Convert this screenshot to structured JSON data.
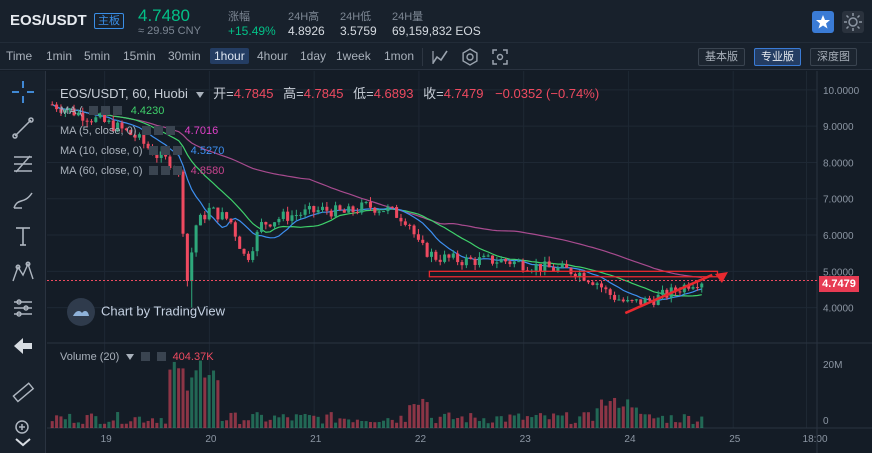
{
  "header": {
    "pair": "EOS/USDT",
    "badge": "主板",
    "price": "4.7480",
    "cny": "≈ 29.95 CNY",
    "stats": [
      {
        "label": "涨幅",
        "value": "+15.49%",
        "tone": "up"
      },
      {
        "label": "24H高",
        "value": "4.8926",
        "tone": "neutral"
      },
      {
        "label": "24H低",
        "value": "3.5759",
        "tone": "neutral"
      },
      {
        "label": "24H量",
        "value": "69,159,832 EOS",
        "tone": "neutral"
      }
    ]
  },
  "toolbar": {
    "intervals": [
      "Time",
      "1min",
      "5min",
      "15min",
      "30min",
      "1hour",
      "4hour",
      "1day",
      "1week",
      "1mon"
    ],
    "active_interval": "1hour",
    "views": [
      "基本版",
      "专业版",
      "深度图"
    ],
    "active_view": "专业版"
  },
  "draw_tools": [
    "crosshair-icon",
    "trendline-icon",
    "fib-icon",
    "brush-icon",
    "text-icon",
    "pattern-icon",
    "measure-icon",
    "back-arrow-icon",
    "ruler-icon",
    "zoom-icon"
  ],
  "chart": {
    "symbol_line": "EOS/USDT, 60, Huobi",
    "open_label": "开=",
    "open": "4.7845",
    "high_label": "高=",
    "high": "4.7845",
    "low_label": "低=",
    "low": "4.6893",
    "close_label": "收=",
    "close": "4.7479",
    "change": "−0.0352 (−0.74%)",
    "ma_rows": [
      {
        "label": "MA (",
        "value": "4.4230",
        "color": "#3fd16b"
      },
      {
        "label": "MA (5, close, 0)",
        "value": "4.7016",
        "color": "#e040c8"
      },
      {
        "label": "MA (10, close, 0)",
        "value": "4.5270",
        "color": "#3d8ff0"
      },
      {
        "label": "MA (60, close, 0)",
        "value": "4.8580",
        "color": "#c8448f"
      }
    ],
    "volume_label": "Volume (20)",
    "volume_value": "404.37K",
    "watermark": "Chart by TradingView",
    "last_price_tag": "4.7479",
    "colors": {
      "up": "#2ea87b",
      "down": "#ee4a60",
      "ma_green": "#3fd16b",
      "ma_blue": "#3d8ff0",
      "ma_purple": "#a84b8f",
      "annotation": "#e8292f"
    }
  },
  "chart_data": {
    "type": "candlestick",
    "y_ticks": [
      "10.0000",
      "9.0000",
      "8.0000",
      "7.0000",
      "6.0000",
      "5.0000",
      "4.0000"
    ],
    "ylim": [
      3.3,
      10.3
    ],
    "x_ticks": [
      "19",
      "20",
      "21",
      "22",
      "23",
      "24",
      "25",
      "18:00"
    ],
    "volume_ticks": [
      "20M",
      "0"
    ],
    "close_path": [
      [
        18.5,
        9.6
      ],
      [
        18.7,
        9.4
      ],
      [
        18.9,
        9.2
      ],
      [
        19.1,
        9.0
      ],
      [
        19.3,
        8.7
      ],
      [
        19.5,
        8.2
      ],
      [
        19.7,
        7.9
      ],
      [
        19.8,
        4.4
      ],
      [
        19.85,
        6.2
      ],
      [
        20.0,
        6.7
      ],
      [
        20.2,
        6.4
      ],
      [
        20.35,
        5.3
      ],
      [
        20.5,
        6.3
      ],
      [
        20.7,
        6.5
      ],
      [
        20.9,
        6.6
      ],
      [
        21.1,
        6.7
      ],
      [
        21.3,
        6.6
      ],
      [
        21.5,
        6.8
      ],
      [
        21.7,
        6.7
      ],
      [
        21.9,
        6.4
      ],
      [
        22.0,
        5.7
      ],
      [
        22.15,
        5.4
      ],
      [
        22.4,
        5.3
      ],
      [
        22.6,
        5.3
      ],
      [
        22.8,
        5.3
      ],
      [
        23.0,
        5.2
      ],
      [
        23.2,
        5.1
      ],
      [
        23.5,
        5.0
      ],
      [
        23.7,
        4.7
      ],
      [
        23.8,
        4.4
      ],
      [
        24.0,
        4.1
      ],
      [
        24.2,
        4.2
      ],
      [
        24.4,
        4.4
      ],
      [
        24.6,
        4.7
      ],
      [
        24.7,
        4.75
      ]
    ]
  }
}
